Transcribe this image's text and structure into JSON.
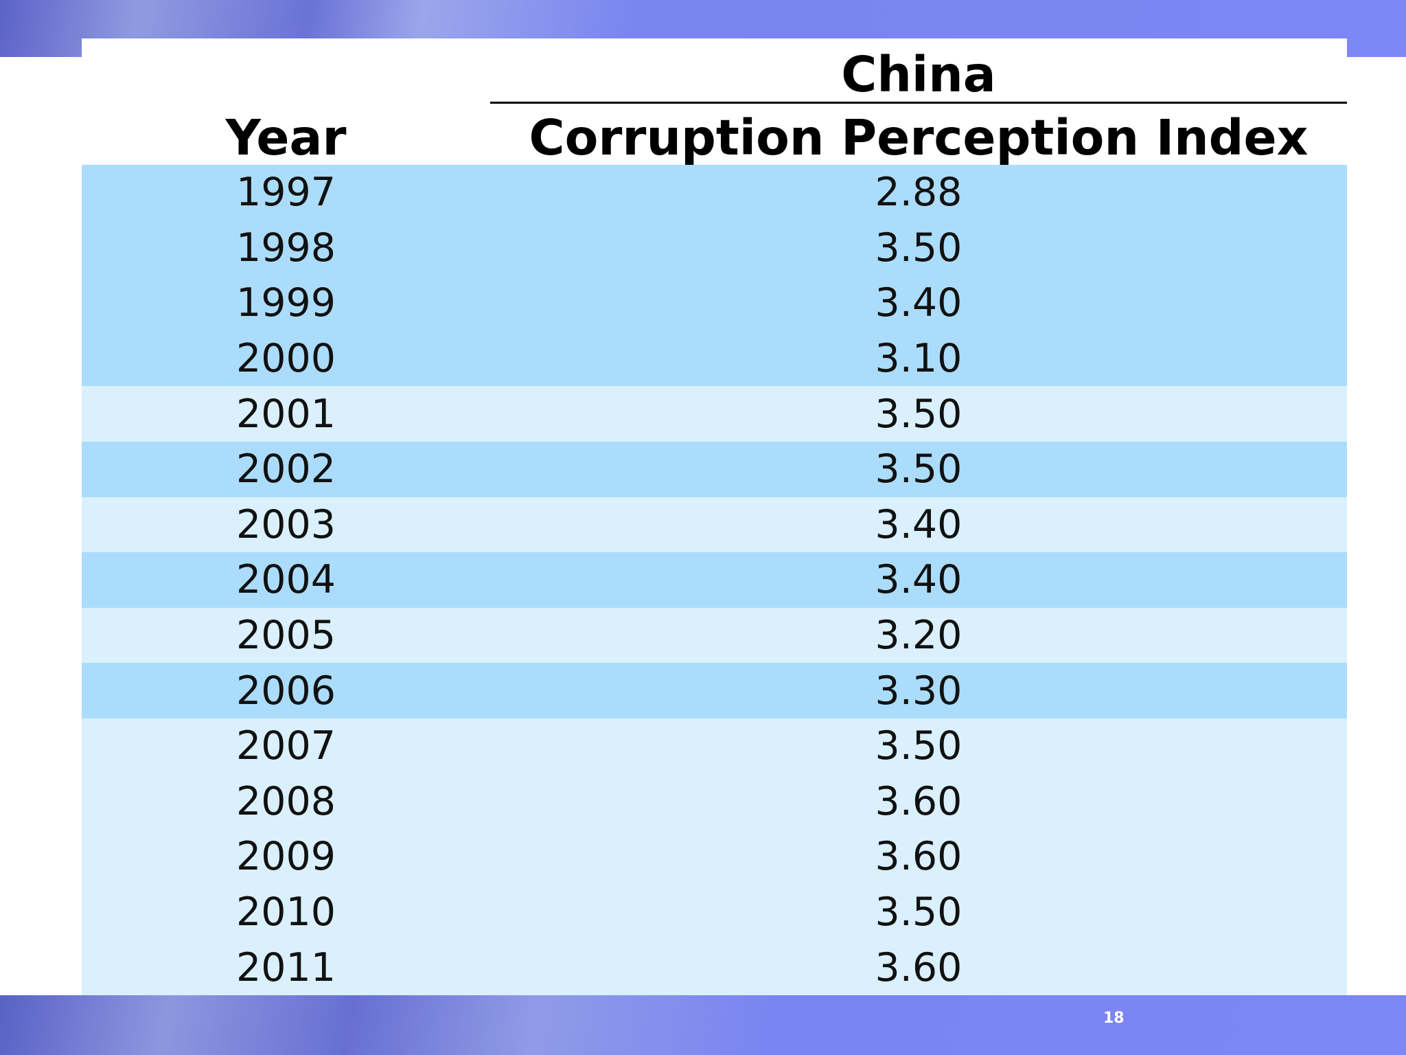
{
  "table": {
    "country_header": "China",
    "year_header": "Year",
    "value_header": "Corruption Perception Index",
    "rows": [
      {
        "year": "1997",
        "value": "2.88",
        "shade": "dark"
      },
      {
        "year": "1998",
        "value": "3.50",
        "shade": "dark"
      },
      {
        "year": "1999",
        "value": "3.40",
        "shade": "dark"
      },
      {
        "year": "2000",
        "value": "3.10",
        "shade": "dark"
      },
      {
        "year": "2001",
        "value": "3.50",
        "shade": "light"
      },
      {
        "year": "2002",
        "value": "3.50",
        "shade": "dark"
      },
      {
        "year": "2003",
        "value": "3.40",
        "shade": "light"
      },
      {
        "year": "2004",
        "value": "3.40",
        "shade": "dark"
      },
      {
        "year": "2005",
        "value": "3.20",
        "shade": "light"
      },
      {
        "year": "2006",
        "value": "3.30",
        "shade": "dark"
      },
      {
        "year": "2007",
        "value": "3.50",
        "shade": "light"
      },
      {
        "year": "2008",
        "value": "3.60",
        "shade": "light"
      },
      {
        "year": "2009",
        "value": "3.60",
        "shade": "light"
      },
      {
        "year": "2010",
        "value": "3.50",
        "shade": "light"
      },
      {
        "year": "2011",
        "value": "3.60",
        "shade": "light"
      }
    ]
  },
  "page_number": "18",
  "colors": {
    "row_dark": "#abdcfb",
    "row_light": "#daf0fd",
    "band": "#7c86f5"
  }
}
